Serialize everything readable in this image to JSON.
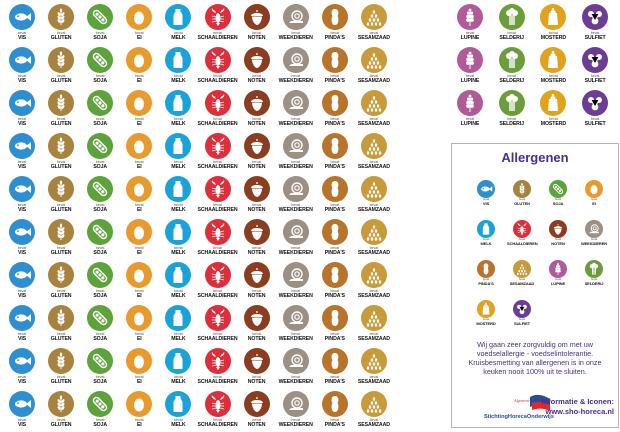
{
  "bevat_label": "bevat",
  "allergens": {
    "vis": {
      "label": "VIS",
      "color": "#2d8fd0",
      "icon": "fish-icon"
    },
    "gluten": {
      "label": "GLUTEN",
      "color": "#a8823f",
      "icon": "wheat-icon"
    },
    "soja": {
      "label": "SOJA",
      "color": "#5ea23b",
      "icon": "soy-pods-icon"
    },
    "ei": {
      "label": "EI",
      "color": "#e89a2c",
      "icon": "egg-icon"
    },
    "melk": {
      "label": "MELK",
      "color": "#1aa3d8",
      "icon": "milk-bottle-icon"
    },
    "schaaldieren": {
      "label": "SCHAALDIEREN",
      "color": "#dd2e3c",
      "icon": "lobster-icon"
    },
    "noten": {
      "label": "NOTEN",
      "color": "#8a3d20",
      "icon": "acorn-icon"
    },
    "weekdieren": {
      "label": "WEEKDIEREN",
      "color": "#9c8f84",
      "icon": "snail-icon"
    },
    "pindas": {
      "label": "PINDA'S",
      "color": "#b8742b",
      "icon": "peanut-icon"
    },
    "sesamzaad": {
      "label": "SESAMZAAD",
      "color": "#c99a3a",
      "icon": "sesame-seeds-icon"
    },
    "lupine": {
      "label": "LUPINE",
      "color": "#b05a97",
      "icon": "lupine-flower-icon"
    },
    "selderij": {
      "label": "SELDERIJ",
      "color": "#6b9d3b",
      "icon": "celery-icon"
    },
    "mosterd": {
      "label": "MOSTERD",
      "color": "#e3a21b",
      "icon": "mustard-bottle-icon"
    },
    "sulfiet": {
      "label": "SULFIET",
      "color": "#6b3d94",
      "icon": "sulfite-molecule-icon"
    }
  },
  "sheet_main_columns": [
    "vis",
    "gluten",
    "soja",
    "ei",
    "melk",
    "schaaldieren",
    "noten",
    "weekdieren",
    "pindas",
    "sesamzaad"
  ],
  "sheet_main_rows": 10,
  "sheet_extra_columns": [
    "lupine",
    "selderij",
    "mosterd",
    "sulfiet"
  ],
  "sheet_extra_rows": 3,
  "legend": {
    "title": "Allergenen",
    "rows": [
      [
        "vis",
        "gluten",
        "soja",
        "ei"
      ],
      [
        "melk",
        "schaaldieren",
        "noten",
        "weekdieren"
      ],
      [
        "pindas",
        "sesamzaad",
        "lupine",
        "selderij"
      ],
      [
        "mosterd",
        "sulfiet"
      ]
    ],
    "message_lines": [
      "Wij gaan zeer zorgvuldig om met uw",
      "voedselallergie - voedselintolerantie.",
      "Kruisbesmetting van allergenen is in onze",
      "keuken nooit 100% uit te sluiten."
    ],
    "info_label": "Informatie & Iconen:",
    "website": "www.sho-horeca.nl",
    "logo_text": "StichtingHorecaOnderwijs",
    "logo_small": "Algemene"
  }
}
